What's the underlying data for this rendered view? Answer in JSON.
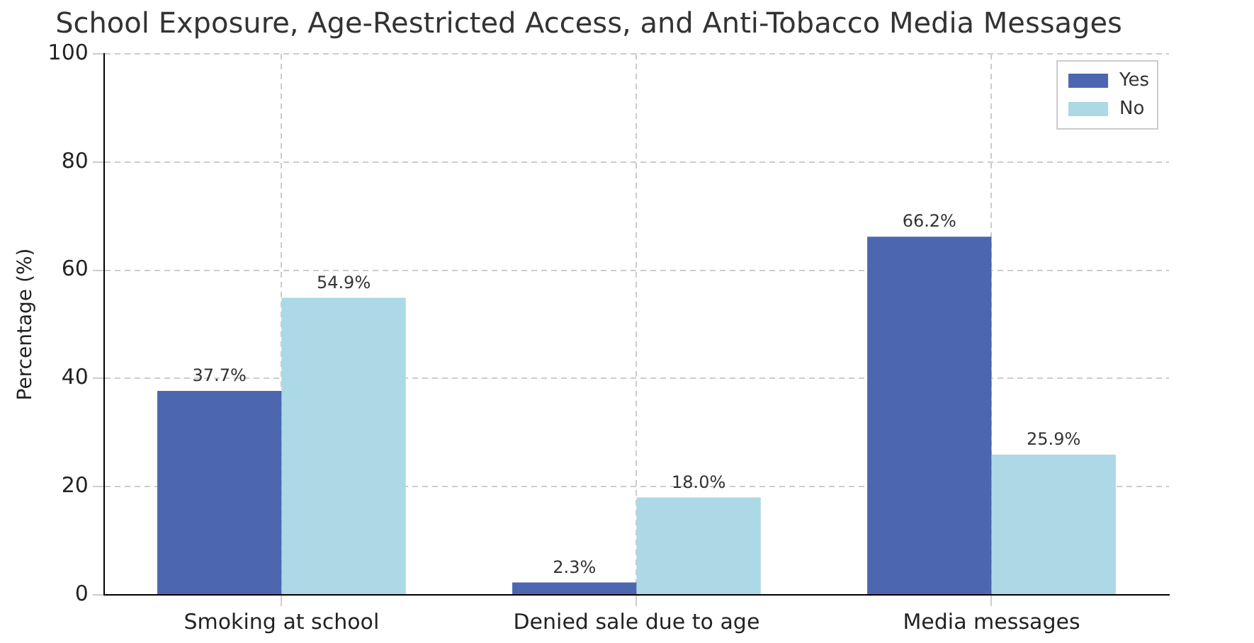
{
  "chart_data": {
    "type": "bar",
    "title": "School Exposure, Age-Restricted Access, and Anti-Tobacco Media Messages",
    "ylabel": "Percentage (%)",
    "categories": [
      "Smoking at school",
      "Denied sale due to age",
      "Media messages"
    ],
    "series": [
      {
        "name": "Yes",
        "color": "#4c67b0",
        "values": [
          37.7,
          2.3,
          66.2
        ],
        "value_labels": [
          "37.7%",
          "2.3%",
          "66.2%"
        ]
      },
      {
        "name": "No",
        "color": "#add8e6",
        "values": [
          54.9,
          18.0,
          25.9
        ],
        "value_labels": [
          "54.9%",
          "18.0%",
          "25.9%"
        ]
      }
    ],
    "ylim": [
      0,
      100
    ],
    "yticks": [
      0,
      20,
      40,
      60,
      80,
      100
    ],
    "grid": true,
    "legend": "top right"
  }
}
